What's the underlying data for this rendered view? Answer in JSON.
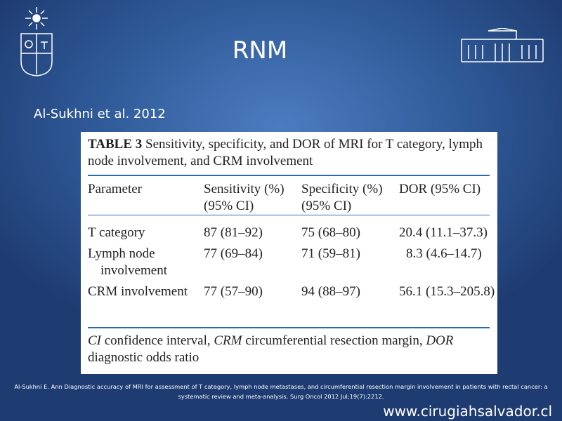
{
  "slide": {
    "title": "RNM",
    "subtitle": "Al-Sukhni et al. 2012",
    "table": {
      "caption_label": "TABLE 3",
      "caption": "Sensitivity, specificity, and DOR of MRI for T category, lymph node involvement, and CRM involvement",
      "header": [
        [
          "Parameter"
        ],
        [
          "Sensitivity (%)",
          "(95% CI)"
        ],
        [
          "Specificity (%)",
          "(95% CI)"
        ],
        [
          "DOR (95% CI)"
        ]
      ],
      "rows": [
        [
          "T category",
          "87 (81–92)",
          "75 (68–80)",
          "20.4 (11.1–37.3)"
        ],
        [
          "Lymph node involvement",
          "77 (69–84)",
          "71 (59–81)",
          "8.3 (4.6–14.7)"
        ],
        [
          "CRM involvement",
          "77 (57–90)",
          "94 (88–97)",
          "56.1 (15.3–205.8)"
        ]
      ],
      "footnote": [
        {
          "abbr": "CI",
          "text": "confidence interval,"
        },
        {
          "abbr": "CRM",
          "text": "circumferential resection margin,"
        },
        {
          "abbr": "DOR",
          "text": "diagnostic odds ratio"
        }
      ]
    },
    "citation": "Al-Sukhni E. Ann Diagnostic accuracy of MRI for assessment of T category, lymph node metastases, and circumferential resection margin involvement in patients with rectal cancer: a systematic review and meta-analysis. Surg Oncol 2012 Jul;19(7):2212.",
    "website": "www.cirugiahsalvador.cl"
  }
}
